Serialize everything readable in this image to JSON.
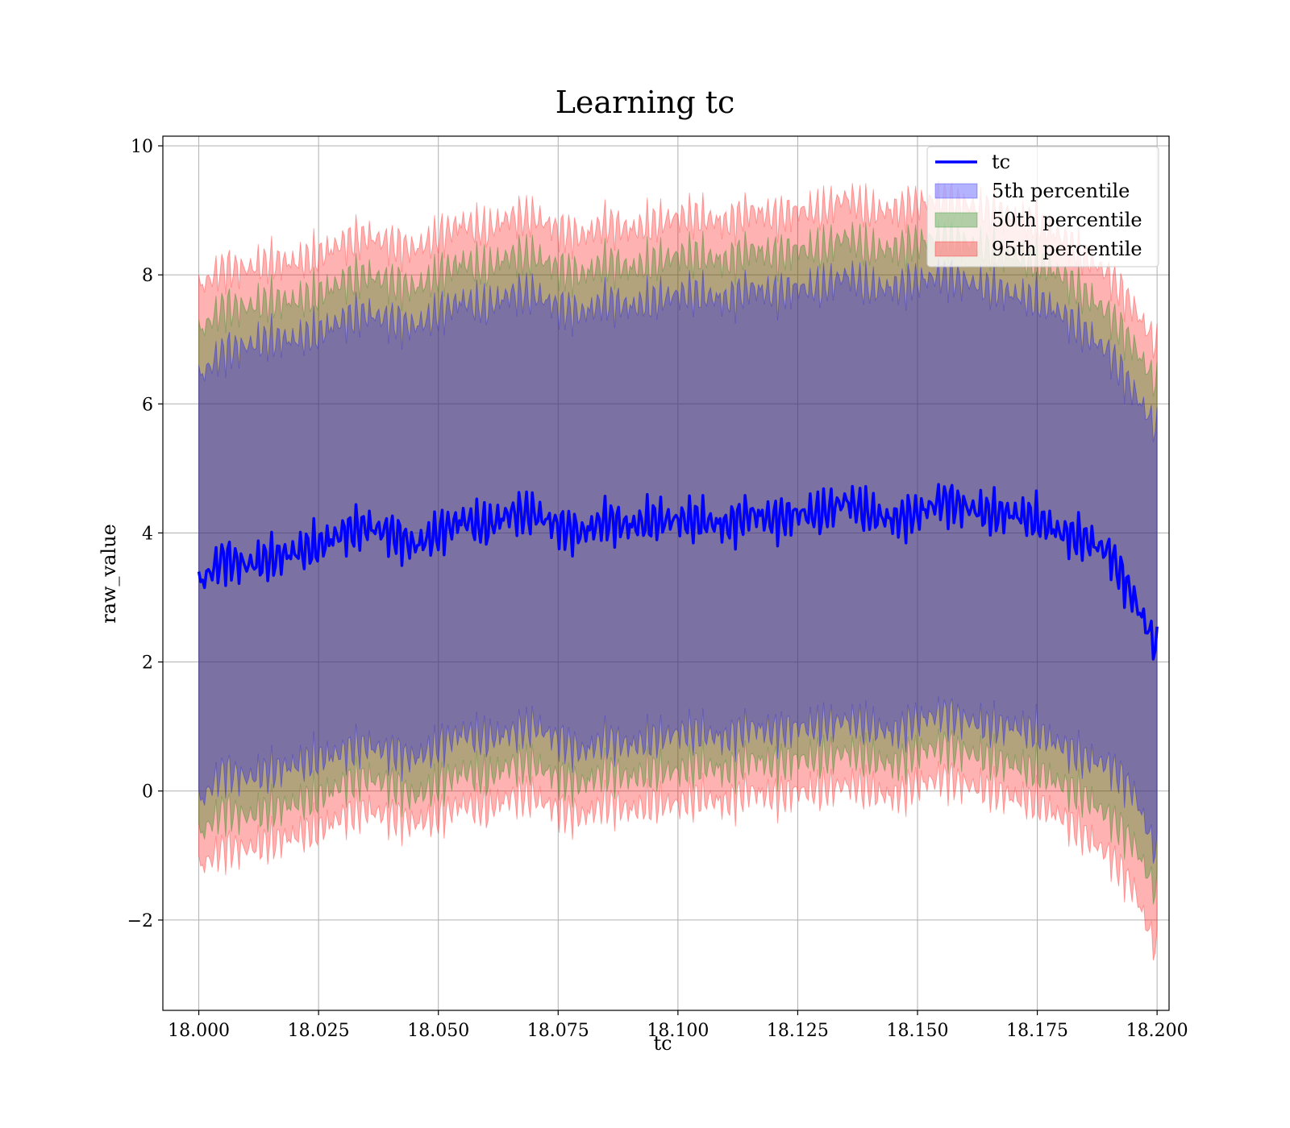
{
  "chart_data": {
    "type": "area",
    "title": "Learning tc",
    "xlabel": "tc",
    "ylabel": "raw_value",
    "xlim": [
      17.9925,
      18.2025
    ],
    "ylim": [
      -3.4,
      10.15
    ],
    "xticks": [
      18.0,
      18.025,
      18.05,
      18.075,
      18.1,
      18.125,
      18.15,
      18.175,
      18.2
    ],
    "xtick_labels": [
      "18.000",
      "18.025",
      "18.050",
      "18.075",
      "18.100",
      "18.125",
      "18.150",
      "18.175",
      "18.200"
    ],
    "yticks": [
      -2,
      0,
      2,
      4,
      6,
      8,
      10
    ],
    "ytick_labels": [
      "−2",
      "0",
      "2",
      "4",
      "6",
      "8",
      "10"
    ],
    "grid": true,
    "legend_position": "top-right",
    "x": [
      18.0,
      18.005,
      18.01,
      18.015,
      18.02,
      18.025,
      18.03,
      18.035,
      18.04,
      18.045,
      18.05,
      18.055,
      18.06,
      18.065,
      18.07,
      18.075,
      18.08,
      18.085,
      18.09,
      18.095,
      18.1,
      18.105,
      18.11,
      18.115,
      18.12,
      18.125,
      18.13,
      18.135,
      18.14,
      18.145,
      18.15,
      18.155,
      18.16,
      18.165,
      18.17,
      18.175,
      18.18,
      18.185,
      18.19,
      18.195,
      18.2
    ],
    "series": [
      {
        "name": "tc",
        "kind": "line",
        "color": "#0000ff",
        "values": [
          3.2,
          3.6,
          3.5,
          3.6,
          3.7,
          3.8,
          4.0,
          4.1,
          4.0,
          3.8,
          4.0,
          4.2,
          4.1,
          4.3,
          4.3,
          4.1,
          4.0,
          4.2,
          4.1,
          4.2,
          4.2,
          4.2,
          4.1,
          4.3,
          4.2,
          4.3,
          4.3,
          4.5,
          4.3,
          4.2,
          4.3,
          4.5,
          4.4,
          4.3,
          4.3,
          4.2,
          4.0,
          3.9,
          3.7,
          3.0,
          2.2
        ]
      },
      {
        "name": "5th percentile",
        "kind": "band",
        "color": "#0000ff",
        "lower": [
          -0.2,
          0.3,
          0.2,
          0.3,
          0.4,
          0.5,
          0.6,
          0.7,
          0.6,
          0.5,
          0.7,
          0.9,
          0.8,
          0.9,
          1.0,
          0.8,
          0.6,
          0.8,
          0.7,
          0.8,
          0.9,
          0.9,
          0.8,
          1.0,
          0.9,
          1.0,
          1.0,
          1.1,
          1.0,
          0.9,
          1.1,
          1.2,
          1.1,
          1.0,
          1.0,
          0.9,
          0.7,
          0.5,
          0.4,
          0.0,
          -1.0
        ],
        "upper": [
          6.4,
          6.8,
          6.9,
          7.0,
          7.0,
          7.1,
          7.3,
          7.4,
          7.3,
          7.2,
          7.4,
          7.6,
          7.5,
          7.7,
          7.7,
          7.5,
          7.4,
          7.6,
          7.5,
          7.6,
          7.7,
          7.7,
          7.6,
          7.8,
          7.7,
          7.8,
          7.8,
          8.0,
          7.8,
          7.8,
          7.9,
          8.0,
          7.9,
          7.8,
          7.7,
          7.6,
          7.4,
          7.1,
          6.8,
          6.2,
          5.6
        ]
      },
      {
        "name": "50th percentile",
        "kind": "band",
        "color": "#008000",
        "lower": [
          -0.7,
          -0.3,
          -0.4,
          -0.3,
          -0.2,
          -0.1,
          0.1,
          0.2,
          0.1,
          -0.1,
          0.1,
          0.3,
          0.2,
          0.4,
          0.4,
          0.2,
          0.1,
          0.3,
          0.2,
          0.3,
          0.3,
          0.4,
          0.3,
          0.5,
          0.4,
          0.5,
          0.5,
          0.6,
          0.5,
          0.4,
          0.6,
          0.7,
          0.6,
          0.5,
          0.4,
          0.3,
          0.1,
          -0.1,
          -0.4,
          -0.8,
          -1.6
        ],
        "upper": [
          7.1,
          7.5,
          7.5,
          7.6,
          7.6,
          7.7,
          7.9,
          8.0,
          7.9,
          7.8,
          8.0,
          8.2,
          8.1,
          8.3,
          8.3,
          8.1,
          8.0,
          8.2,
          8.1,
          8.2,
          8.3,
          8.3,
          8.2,
          8.4,
          8.3,
          8.4,
          8.4,
          8.6,
          8.4,
          8.4,
          8.5,
          8.6,
          8.5,
          8.4,
          8.3,
          8.2,
          8.0,
          7.7,
          7.4,
          6.9,
          6.3
        ]
      },
      {
        "name": "95th percentile",
        "kind": "band",
        "color": "#ff0000",
        "lower": [
          -1.2,
          -0.9,
          -0.9,
          -0.8,
          -0.7,
          -0.6,
          -0.4,
          -0.3,
          -0.4,
          -0.5,
          -0.4,
          -0.2,
          -0.3,
          -0.1,
          -0.1,
          -0.3,
          -0.4,
          -0.2,
          -0.3,
          -0.2,
          -0.2,
          -0.1,
          -0.2,
          0.0,
          -0.1,
          0.0,
          0.0,
          0.1,
          0.0,
          -0.1,
          0.1,
          0.2,
          0.1,
          0.0,
          -0.1,
          -0.2,
          -0.4,
          -0.7,
          -1.0,
          -1.5,
          -2.5
        ],
        "upper": [
          7.8,
          8.1,
          8.1,
          8.2,
          8.2,
          8.3,
          8.5,
          8.6,
          8.5,
          8.4,
          8.6,
          8.8,
          8.7,
          8.9,
          8.9,
          8.7,
          8.6,
          8.8,
          8.7,
          8.8,
          8.9,
          8.9,
          8.8,
          9.0,
          8.9,
          9.0,
          9.0,
          9.2,
          9.0,
          9.0,
          9.1,
          9.2,
          9.1,
          9.0,
          8.9,
          8.8,
          8.6,
          8.3,
          8.0,
          7.5,
          6.9
        ]
      }
    ]
  }
}
